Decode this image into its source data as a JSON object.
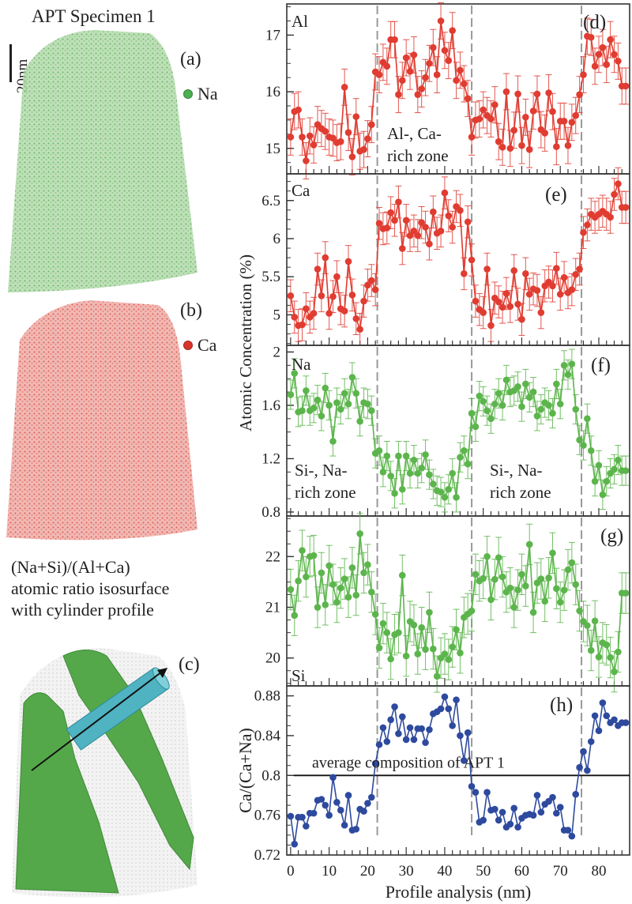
{
  "left": {
    "title": "APT Specimen 1",
    "scale_bar_label": "20nm",
    "panels": [
      {
        "label": "(a)",
        "legend": "Na",
        "color": "#4caf50"
      },
      {
        "label": "(b)",
        "legend": "Ca",
        "color": "#d9342b"
      },
      {
        "label": "(c)",
        "caption_lines": [
          "(Na+Si)/(Al+Ca)",
          "atomic ratio isosurface",
          "with cylinder profile"
        ]
      }
    ]
  },
  "chart_data": [
    {
      "type": "line",
      "panel": "(d)",
      "element": "Al",
      "color": "#e03c31",
      "ylim": [
        14.55,
        17.55
      ],
      "yticks": [
        15,
        16,
        17
      ],
      "error_bars": true,
      "annotation": [
        "Al-, Ca-",
        "rich zone"
      ],
      "x": [
        0,
        1,
        2,
        3,
        4,
        5,
        6,
        7,
        8,
        9,
        10,
        11,
        12,
        13,
        14,
        15,
        16,
        17,
        18,
        19,
        20,
        21,
        22,
        23,
        24,
        25,
        26,
        27,
        28,
        29,
        30,
        31,
        32,
        33,
        34,
        35,
        36,
        37,
        38,
        39,
        40,
        41,
        42,
        43,
        44,
        45,
        46,
        47,
        48,
        49,
        50,
        51,
        52,
        53,
        54,
        55,
        56,
        57,
        58,
        59,
        60,
        61,
        62,
        63,
        64,
        65,
        66,
        67,
        68,
        69,
        70,
        71,
        72,
        73,
        74,
        75,
        76,
        77,
        78,
        79,
        80,
        81,
        82,
        83,
        84,
        85,
        86,
        87
      ],
      "values": [
        15.2,
        15.65,
        15.68,
        15.2,
        14.78,
        15.22,
        15.06,
        15.42,
        15.35,
        15.3,
        15.2,
        15.18,
        15.1,
        15.12,
        16.08,
        15.28,
        14.85,
        15.56,
        14.95,
        14.98,
        15.17,
        15.42,
        16.35,
        16.3,
        16.52,
        16.45,
        16.92,
        16.92,
        15.95,
        16.2,
        16.6,
        16.36,
        16.65,
        15.95,
        16.05,
        16.25,
        16.5,
        16.78,
        16.3,
        17.25,
        16.73,
        16.55,
        17.08,
        16.2,
        16.38,
        16.14,
        15.88,
        15.2,
        15.5,
        15.52,
        15.68,
        15.58,
        15.52,
        15.77,
        15.12,
        15.02,
        16.0,
        15.0,
        15.32,
        15.96,
        15.05,
        15.55,
        14.98,
        15.66,
        15.96,
        15.33,
        15.27,
        15.98,
        15.65,
        15.03,
        15.48,
        15.48,
        15.05,
        15.46,
        15.58,
        15.95,
        16.3,
        16.98,
        16.96,
        16.45,
        16.66,
        16.78,
        16.48,
        16.92,
        16.66,
        16.54,
        16.1,
        16.1
      ],
      "errors": 0.32
    },
    {
      "type": "line",
      "panel": "(e)",
      "element": "Ca",
      "color": "#e03c31",
      "ylim": [
        4.6,
        6.85
      ],
      "yticks": [
        5,
        5.5,
        6,
        6.5
      ],
      "error_bars": true,
      "x": [
        0,
        1,
        2,
        3,
        4,
        5,
        6,
        7,
        8,
        9,
        10,
        11,
        12,
        13,
        14,
        15,
        16,
        17,
        18,
        19,
        20,
        21,
        22,
        23,
        24,
        25,
        26,
        27,
        28,
        29,
        30,
        31,
        32,
        33,
        34,
        35,
        36,
        37,
        38,
        39,
        40,
        41,
        42,
        43,
        44,
        45,
        46,
        47,
        48,
        49,
        50,
        51,
        52,
        53,
        54,
        55,
        56,
        57,
        58,
        59,
        60,
        61,
        62,
        63,
        64,
        65,
        66,
        67,
        68,
        69,
        70,
        71,
        72,
        73,
        74,
        75,
        76,
        77,
        78,
        79,
        80,
        81,
        82,
        83,
        84,
        85,
        86,
        87
      ],
      "values": [
        5.25,
        4.97,
        4.86,
        4.87,
        5.08,
        4.97,
        5.02,
        5.6,
        5.25,
        5.75,
        5.02,
        5.24,
        5.5,
        5.08,
        5.05,
        5.7,
        5.26,
        4.95,
        4.81,
        5.18,
        5.39,
        5.45,
        5.33,
        6.2,
        6.13,
        6.14,
        6.34,
        6.24,
        6.48,
        5.87,
        6.24,
        6.04,
        6.1,
        6.04,
        6.21,
        6.15,
        5.93,
        6.35,
        6.07,
        6.1,
        6.6,
        6.3,
        6.15,
        6.42,
        6.37,
        5.54,
        6.22,
        5.72,
        5.18,
        5.07,
        5.03,
        5.6,
        4.86,
        5.22,
        5.17,
        5.1,
        5.28,
        5.11,
        5.58,
        5.14,
        4.94,
        5.54,
        5.27,
        5.34,
        5.32,
        5.03,
        5.38,
        5.43,
        5.38,
        5.61,
        5.27,
        5.49,
        5.29,
        5.33,
        5.53,
        5.6,
        6.08,
        6.18,
        6.32,
        6.28,
        6.32,
        6.36,
        6.32,
        6.28,
        6.58,
        6.72,
        6.41,
        6.41
      ],
      "errors": 0.21
    },
    {
      "type": "line",
      "panel": "(f)",
      "element": "Na",
      "color": "#5cb54c",
      "ylim": [
        0.77,
        2.05
      ],
      "yticks": [
        0.8,
        1.2,
        1.6,
        2
      ],
      "error_bars": true,
      "annotations": [
        [
          "Si-, Na-",
          "rich zone"
        ],
        [
          "Si-, Na-",
          "rich zone"
        ]
      ],
      "x": [
        0,
        1,
        2,
        3,
        4,
        5,
        6,
        7,
        8,
        9,
        10,
        11,
        12,
        13,
        14,
        15,
        16,
        17,
        18,
        19,
        20,
        21,
        22,
        23,
        24,
        25,
        26,
        27,
        28,
        29,
        30,
        31,
        32,
        33,
        34,
        35,
        36,
        37,
        38,
        39,
        40,
        41,
        42,
        43,
        44,
        45,
        46,
        47,
        48,
        49,
        50,
        51,
        52,
        53,
        54,
        55,
        56,
        57,
        58,
        59,
        60,
        61,
        62,
        63,
        64,
        65,
        66,
        67,
        68,
        69,
        70,
        71,
        72,
        73,
        74,
        75,
        76,
        77,
        78,
        79,
        80,
        81,
        82,
        83,
        84,
        85,
        86,
        87
      ],
      "values": [
        1.68,
        1.84,
        1.55,
        1.56,
        1.71,
        1.56,
        1.58,
        1.64,
        1.52,
        1.73,
        1.6,
        1.33,
        1.62,
        1.57,
        1.69,
        1.61,
        1.81,
        1.69,
        1.48,
        1.62,
        1.61,
        1.56,
        1.24,
        1.26,
        1.1,
        1.22,
        1.07,
        0.94,
        1.22,
        0.97,
        1.22,
        1.09,
        1.19,
        1.09,
        1.13,
        1.23,
        1.08,
        1.01,
        0.96,
        0.95,
        0.91,
        0.97,
        1.09,
        0.91,
        1.21,
        1.26,
        1.16,
        1.54,
        1.44,
        1.67,
        1.63,
        1.56,
        1.5,
        1.61,
        1.69,
        1.6,
        1.79,
        1.7,
        1.71,
        1.74,
        1.59,
        1.76,
        1.66,
        1.7,
        1.52,
        1.57,
        1.62,
        1.6,
        1.54,
        1.76,
        1.61,
        1.9,
        1.83,
        1.91,
        1.57,
        1.34,
        1.3,
        1.5,
        1.26,
        1.03,
        1.15,
        0.93,
        1.03,
        1.09,
        1.12,
        1.19,
        1.11,
        1.11
      ],
      "errors": 0.11
    },
    {
      "type": "line",
      "panel": "(g)",
      "element": "Si",
      "color": "#5cb54c",
      "ylim": [
        19.45,
        22.8
      ],
      "yticks": [
        20,
        21,
        22
      ],
      "error_bars": true,
      "x": [
        0,
        1,
        2,
        3,
        4,
        5,
        6,
        7,
        8,
        9,
        10,
        11,
        12,
        13,
        14,
        15,
        16,
        17,
        18,
        19,
        20,
        21,
        22,
        23,
        24,
        25,
        26,
        27,
        28,
        29,
        30,
        31,
        32,
        33,
        34,
        35,
        36,
        37,
        38,
        39,
        40,
        41,
        42,
        43,
        44,
        45,
        46,
        47,
        48,
        49,
        50,
        51,
        52,
        53,
        54,
        55,
        56,
        57,
        58,
        59,
        60,
        61,
        62,
        63,
        64,
        65,
        66,
        67,
        68,
        69,
        70,
        71,
        72,
        73,
        74,
        75,
        76,
        77,
        78,
        79,
        80,
        81,
        82,
        83,
        84,
        85,
        86,
        87
      ],
      "values": [
        21.35,
        20.84,
        21.52,
        22.12,
        21.6,
        22.0,
        22.02,
        21.0,
        21.68,
        21.05,
        21.82,
        21.45,
        21.1,
        21.38,
        21.56,
        21.2,
        21.78,
        21.24,
        22.45,
        21.68,
        21.84,
        21.3,
        20.86,
        20.2,
        20.68,
        20.5,
        19.98,
        20.46,
        20.5,
        21.63,
        20.04,
        20.72,
        20.65,
        20.08,
        20.6,
        20.17,
        20.9,
        20.18,
        19.64,
        20.0,
        20.08,
        19.97,
        20.22,
        20.56,
        20.1,
        20.8,
        20.87,
        20.93,
        21.65,
        21.52,
        21.57,
        22.0,
        21.15,
        21.55,
        21.98,
        21.6,
        21.3,
        21.38,
        21.0,
        21.34,
        21.65,
        21.42,
        22.24,
        20.9,
        21.48,
        21.56,
        21.12,
        21.58,
        22.07,
        21.37,
        21.1,
        21.34,
        21.74,
        21.88,
        21.45,
        20.93,
        20.72,
        20.64,
        20.15,
        20.73,
        20.02,
        20.3,
        20.26,
        20.01,
        19.73,
        20.12,
        21.28,
        21.28
      ],
      "errors": 0.4
    },
    {
      "type": "line",
      "panel": "(h)",
      "color": "#2e4a9e",
      "ylabel": "Ca/(Ca+Na)",
      "ylim": [
        0.72,
        0.89
      ],
      "yticks": [
        0.72,
        0.76,
        0.8,
        0.84,
        0.88
      ],
      "error_bars": false,
      "reference_line": {
        "y": 0.8,
        "label": "average composition of APT 1"
      },
      "x": [
        0,
        1,
        2,
        3,
        4,
        5,
        6,
        7,
        8,
        9,
        10,
        11,
        12,
        13,
        14,
        15,
        16,
        17,
        18,
        19,
        20,
        21,
        22,
        23,
        24,
        25,
        26,
        27,
        28,
        29,
        30,
        31,
        32,
        33,
        34,
        35,
        36,
        37,
        38,
        39,
        40,
        41,
        42,
        43,
        44,
        45,
        46,
        47,
        48,
        49,
        50,
        51,
        52,
        53,
        54,
        55,
        56,
        57,
        58,
        59,
        60,
        61,
        62,
        63,
        64,
        65,
        66,
        67,
        68,
        69,
        70,
        71,
        72,
        73,
        74,
        75,
        76,
        77,
        78,
        79,
        80,
        81,
        82,
        83,
        84,
        85,
        86,
        87
      ],
      "values": [
        0.759,
        0.731,
        0.758,
        0.758,
        0.749,
        0.762,
        0.762,
        0.775,
        0.776,
        0.77,
        0.76,
        0.798,
        0.773,
        0.765,
        0.75,
        0.78,
        0.745,
        0.746,
        0.766,
        0.764,
        0.772,
        0.778,
        0.812,
        0.831,
        0.848,
        0.834,
        0.856,
        0.869,
        0.842,
        0.859,
        0.836,
        0.848,
        0.836,
        0.847,
        0.847,
        0.833,
        0.846,
        0.862,
        0.864,
        0.867,
        0.879,
        0.867,
        0.85,
        0.876,
        0.84,
        0.815,
        0.843,
        0.789,
        0.783,
        0.753,
        0.755,
        0.783,
        0.765,
        0.766,
        0.755,
        0.763,
        0.748,
        0.751,
        0.767,
        0.748,
        0.757,
        0.76,
        0.761,
        0.76,
        0.78,
        0.763,
        0.771,
        0.774,
        0.778,
        0.762,
        0.768,
        0.745,
        0.745,
        0.739,
        0.781,
        0.808,
        0.824,
        0.805,
        0.834,
        0.86,
        0.845,
        0.873,
        0.86,
        0.853,
        0.856,
        0.85,
        0.853,
        0.853
      ]
    }
  ],
  "shared": {
    "xlabel": "Profile analysis (nm)",
    "ylabel": "Atomic Concentration (%)",
    "xlim": [
      -1,
      88
    ],
    "xticks": [
      0,
      10,
      20,
      30,
      40,
      50,
      60,
      70,
      80
    ],
    "zone_boundaries": [
      22.5,
      47,
      75.5
    ],
    "grid": false,
    "legend": "none"
  }
}
